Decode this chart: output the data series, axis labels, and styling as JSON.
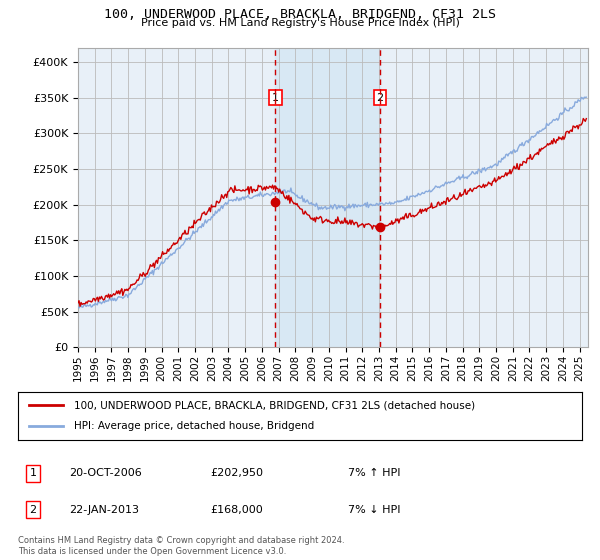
{
  "title": "100, UNDERWOOD PLACE, BRACKLA, BRIDGEND, CF31 2LS",
  "subtitle": "Price paid vs. HM Land Registry's House Price Index (HPI)",
  "legend_label_red": "100, UNDERWOOD PLACE, BRACKLA, BRIDGEND, CF31 2LS (detached house)",
  "legend_label_blue": "HPI: Average price, detached house, Bridgend",
  "annotation1": {
    "label": "1",
    "date": "20-OCT-2006",
    "price": "£202,950",
    "hpi": "7% ↑ HPI"
  },
  "annotation2": {
    "label": "2",
    "date": "22-JAN-2013",
    "price": "£168,000",
    "hpi": "7% ↓ HPI"
  },
  "footnote": "Contains HM Land Registry data © Crown copyright and database right 2024.\nThis data is licensed under the Open Government Licence v3.0.",
  "ylim": [
    0,
    420000
  ],
  "yticks": [
    0,
    50000,
    100000,
    150000,
    200000,
    250000,
    300000,
    350000,
    400000
  ],
  "background_color": "#ffffff",
  "plot_bg_color": "#e8f0f8",
  "grid_color": "#bbbbbb",
  "red_color": "#cc0000",
  "blue_color": "#88aadd",
  "shade_color": "#d8e8f4",
  "vline1_x": 2006.8,
  "vline2_x": 2013.07,
  "marker1_y": 202950,
  "marker2_y": 168000,
  "xmin": 1995,
  "xmax": 2025.5,
  "xticks": [
    1995,
    1996,
    1997,
    1998,
    1999,
    2000,
    2001,
    2002,
    2003,
    2004,
    2005,
    2006,
    2007,
    2008,
    2009,
    2010,
    2011,
    2012,
    2013,
    2014,
    2015,
    2016,
    2017,
    2018,
    2019,
    2020,
    2021,
    2022,
    2023,
    2024,
    2025
  ]
}
